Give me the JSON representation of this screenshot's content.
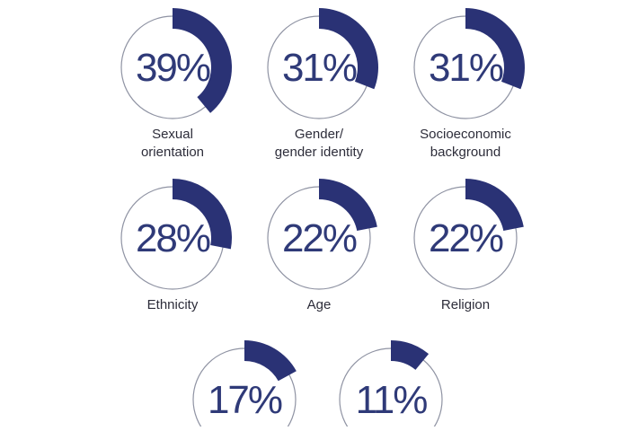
{
  "chart_data": {
    "type": "donut",
    "accent_color": "#2a3275",
    "ring_color": "#8f93a3",
    "items": [
      {
        "label_lines": [
          "Sexual",
          "orientation"
        ],
        "value": 39,
        "value_label": "39%"
      },
      {
        "label_lines": [
          "Gender/",
          "gender identity"
        ],
        "value": 31,
        "value_label": "31%"
      },
      {
        "label_lines": [
          "Socioeconomic",
          "background"
        ],
        "value": 31,
        "value_label": "31%"
      },
      {
        "label_lines": [
          "Ethnicity"
        ],
        "value": 28,
        "value_label": "28%"
      },
      {
        "label_lines": [
          "Age"
        ],
        "value": 22,
        "value_label": "22%"
      },
      {
        "label_lines": [
          "Religion"
        ],
        "value": 22,
        "value_label": "22%"
      },
      {
        "label_lines": [],
        "value": 17,
        "value_label": "17%"
      },
      {
        "label_lines": [],
        "value": 11,
        "value_label": "11%"
      }
    ]
  }
}
